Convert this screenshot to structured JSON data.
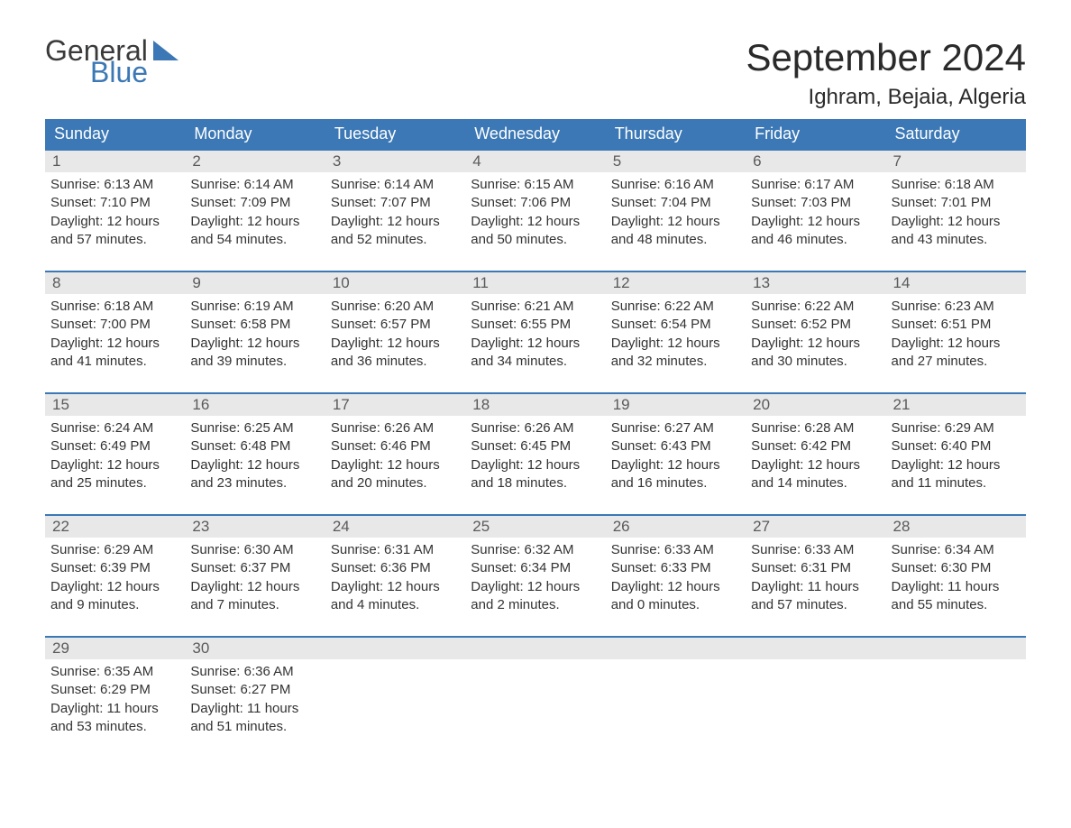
{
  "logo": {
    "word1": "General",
    "word2": "Blue"
  },
  "title": "September 2024",
  "location": "Ighram, Bejaia, Algeria",
  "weekdays": [
    "Sunday",
    "Monday",
    "Tuesday",
    "Wednesday",
    "Thursday",
    "Friday",
    "Saturday"
  ],
  "colors": {
    "header_bg": "#3b78b5",
    "header_text": "#ffffff",
    "daynum_bg": "#e8e8e8",
    "daynum_text": "#5a5a5a",
    "body_text": "#333333",
    "week_border": "#3b78b5",
    "page_bg": "#ffffff",
    "logo_gray": "#3a3a3a",
    "logo_blue": "#3b78b5"
  },
  "typography": {
    "title_fontsize": 42,
    "location_fontsize": 24,
    "weekday_fontsize": 18,
    "daynum_fontsize": 17,
    "body_fontsize": 15,
    "logo_fontsize": 32
  },
  "days": [
    {
      "n": "1",
      "sunrise": "6:13 AM",
      "sunset": "7:10 PM",
      "dl1": "12 hours",
      "dl2": "and 57 minutes."
    },
    {
      "n": "2",
      "sunrise": "6:14 AM",
      "sunset": "7:09 PM",
      "dl1": "12 hours",
      "dl2": "and 54 minutes."
    },
    {
      "n": "3",
      "sunrise": "6:14 AM",
      "sunset": "7:07 PM",
      "dl1": "12 hours",
      "dl2": "and 52 minutes."
    },
    {
      "n": "4",
      "sunrise": "6:15 AM",
      "sunset": "7:06 PM",
      "dl1": "12 hours",
      "dl2": "and 50 minutes."
    },
    {
      "n": "5",
      "sunrise": "6:16 AM",
      "sunset": "7:04 PM",
      "dl1": "12 hours",
      "dl2": "and 48 minutes."
    },
    {
      "n": "6",
      "sunrise": "6:17 AM",
      "sunset": "7:03 PM",
      "dl1": "12 hours",
      "dl2": "and 46 minutes."
    },
    {
      "n": "7",
      "sunrise": "6:18 AM",
      "sunset": "7:01 PM",
      "dl1": "12 hours",
      "dl2": "and 43 minutes."
    },
    {
      "n": "8",
      "sunrise": "6:18 AM",
      "sunset": "7:00 PM",
      "dl1": "12 hours",
      "dl2": "and 41 minutes."
    },
    {
      "n": "9",
      "sunrise": "6:19 AM",
      "sunset": "6:58 PM",
      "dl1": "12 hours",
      "dl2": "and 39 minutes."
    },
    {
      "n": "10",
      "sunrise": "6:20 AM",
      "sunset": "6:57 PM",
      "dl1": "12 hours",
      "dl2": "and 36 minutes."
    },
    {
      "n": "11",
      "sunrise": "6:21 AM",
      "sunset": "6:55 PM",
      "dl1": "12 hours",
      "dl2": "and 34 minutes."
    },
    {
      "n": "12",
      "sunrise": "6:22 AM",
      "sunset": "6:54 PM",
      "dl1": "12 hours",
      "dl2": "and 32 minutes."
    },
    {
      "n": "13",
      "sunrise": "6:22 AM",
      "sunset": "6:52 PM",
      "dl1": "12 hours",
      "dl2": "and 30 minutes."
    },
    {
      "n": "14",
      "sunrise": "6:23 AM",
      "sunset": "6:51 PM",
      "dl1": "12 hours",
      "dl2": "and 27 minutes."
    },
    {
      "n": "15",
      "sunrise": "6:24 AM",
      "sunset": "6:49 PM",
      "dl1": "12 hours",
      "dl2": "and 25 minutes."
    },
    {
      "n": "16",
      "sunrise": "6:25 AM",
      "sunset": "6:48 PM",
      "dl1": "12 hours",
      "dl2": "and 23 minutes."
    },
    {
      "n": "17",
      "sunrise": "6:26 AM",
      "sunset": "6:46 PM",
      "dl1": "12 hours",
      "dl2": "and 20 minutes."
    },
    {
      "n": "18",
      "sunrise": "6:26 AM",
      "sunset": "6:45 PM",
      "dl1": "12 hours",
      "dl2": "and 18 minutes."
    },
    {
      "n": "19",
      "sunrise": "6:27 AM",
      "sunset": "6:43 PM",
      "dl1": "12 hours",
      "dl2": "and 16 minutes."
    },
    {
      "n": "20",
      "sunrise": "6:28 AM",
      "sunset": "6:42 PM",
      "dl1": "12 hours",
      "dl2": "and 14 minutes."
    },
    {
      "n": "21",
      "sunrise": "6:29 AM",
      "sunset": "6:40 PM",
      "dl1": "12 hours",
      "dl2": "and 11 minutes."
    },
    {
      "n": "22",
      "sunrise": "6:29 AM",
      "sunset": "6:39 PM",
      "dl1": "12 hours",
      "dl2": "and 9 minutes."
    },
    {
      "n": "23",
      "sunrise": "6:30 AM",
      "sunset": "6:37 PM",
      "dl1": "12 hours",
      "dl2": "and 7 minutes."
    },
    {
      "n": "24",
      "sunrise": "6:31 AM",
      "sunset": "6:36 PM",
      "dl1": "12 hours",
      "dl2": "and 4 minutes."
    },
    {
      "n": "25",
      "sunrise": "6:32 AM",
      "sunset": "6:34 PM",
      "dl1": "12 hours",
      "dl2": "and 2 minutes."
    },
    {
      "n": "26",
      "sunrise": "6:33 AM",
      "sunset": "6:33 PM",
      "dl1": "12 hours",
      "dl2": "and 0 minutes."
    },
    {
      "n": "27",
      "sunrise": "6:33 AM",
      "sunset": "6:31 PM",
      "dl1": "11 hours",
      "dl2": "and 57 minutes."
    },
    {
      "n": "28",
      "sunrise": "6:34 AM",
      "sunset": "6:30 PM",
      "dl1": "11 hours",
      "dl2": "and 55 minutes."
    },
    {
      "n": "29",
      "sunrise": "6:35 AM",
      "sunset": "6:29 PM",
      "dl1": "11 hours",
      "dl2": "and 53 minutes."
    },
    {
      "n": "30",
      "sunrise": "6:36 AM",
      "sunset": "6:27 PM",
      "dl1": "11 hours",
      "dl2": "and 51 minutes."
    }
  ],
  "labels": {
    "sunrise_prefix": "Sunrise: ",
    "sunset_prefix": "Sunset: ",
    "daylight_prefix": "Daylight: "
  },
  "layout": {
    "start_weekday_index": 0,
    "total_days": 30,
    "cells_per_row": 7
  }
}
